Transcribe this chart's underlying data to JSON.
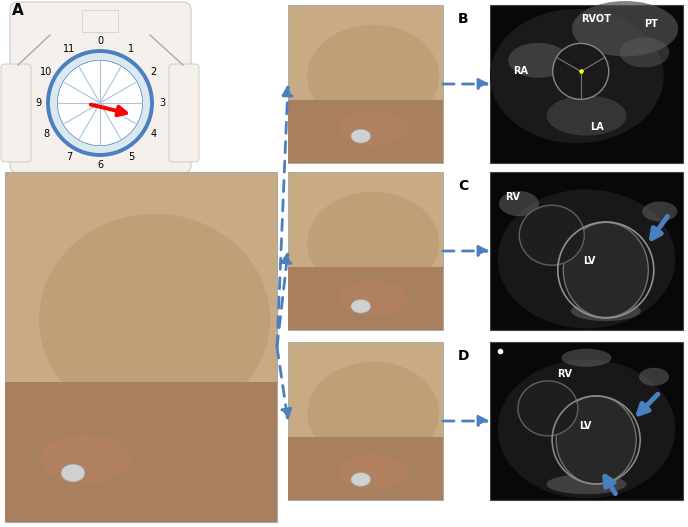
{
  "figure_width": 6.88,
  "figure_height": 5.27,
  "bg_color": "#ffffff",
  "arrow_color": "#4a7fc0",
  "label_A": "A",
  "label_B": "B",
  "label_C": "C",
  "label_D": "D",
  "clock_numbers": [
    "0",
    "1",
    "2",
    "3",
    "4",
    "5",
    "6",
    "7",
    "8",
    "9",
    "10",
    "11"
  ],
  "clock_bg": "#dce8f0",
  "clock_border": "#4a7fc0",
  "echo_labels_B": [
    "RVOT",
    "PT",
    "RA",
    "LA"
  ],
  "echo_labels_C": [
    "RV",
    "LV"
  ],
  "echo_labels_D": [
    "RV",
    "LV"
  ],
  "body_color": "#e8d5c0",
  "skin_color": "#c8a882",
  "dark_bg": "#080808",
  "echo_text_color": "#ffffff",
  "label_font_size": 9,
  "clock_label_font_size": 7
}
